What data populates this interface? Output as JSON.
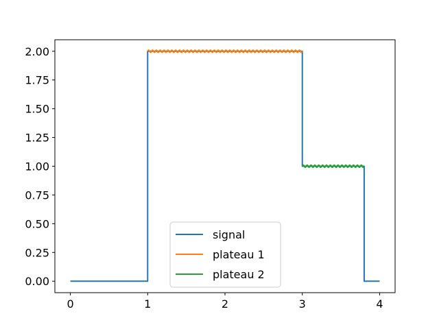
{
  "chart_data": {
    "type": "line",
    "xlim": [
      -0.2,
      4.2
    ],
    "ylim": [
      -0.1,
      2.1
    ],
    "x_ticks": [
      0,
      1,
      2,
      3,
      4
    ],
    "x_tick_labels": [
      "0",
      "1",
      "2",
      "3",
      "4"
    ],
    "y_ticks": [
      0,
      0.25,
      0.5,
      0.75,
      1.0,
      1.25,
      1.5,
      1.75,
      2.0
    ],
    "y_tick_labels": [
      "0.00",
      "0.25",
      "0.50",
      "0.75",
      "1.00",
      "1.25",
      "1.50",
      "1.75",
      "2.00"
    ],
    "grid": false,
    "legend_position": "bottom-center",
    "series": [
      {
        "name": "signal",
        "color": "#1f77b4",
        "x": [
          0,
          1,
          1,
          3,
          3,
          3.8,
          3.8,
          4
        ],
        "y": [
          0,
          0,
          2,
          2,
          1,
          1,
          0,
          0
        ]
      },
      {
        "name": "plateau 1",
        "color": "#ff7f0e",
        "x_range": [
          1,
          3
        ],
        "baseline": 2,
        "ripple_amplitude": 0.01,
        "ripple_cycles": 40
      },
      {
        "name": "plateau 2",
        "color": "#2ca02c",
        "x_range": [
          3,
          3.8
        ],
        "baseline": 1,
        "ripple_amplitude": 0.01,
        "ripple_cycles": 16
      }
    ]
  }
}
